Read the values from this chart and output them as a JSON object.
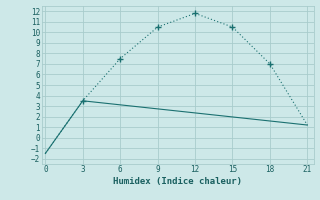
{
  "xlabel": "Humidex (Indice chaleur)",
  "background_color": "#cde8e8",
  "grid_color": "#a8cccc",
  "line_color": "#1a7070",
  "line1_x": [
    0,
    3,
    6,
    9,
    12,
    15,
    18,
    21
  ],
  "line1_y": [
    -1.5,
    3.5,
    7.5,
    10.5,
    11.8,
    10.5,
    7.0,
    1.2
  ],
  "line2_x": [
    0,
    3,
    21
  ],
  "line2_y": [
    -1.5,
    3.5,
    1.2
  ],
  "xlim": [
    -0.3,
    21.5
  ],
  "ylim": [
    -2.5,
    12.5
  ],
  "xticks": [
    0,
    3,
    6,
    9,
    12,
    15,
    18,
    21
  ],
  "yticks": [
    -2,
    -1,
    0,
    1,
    2,
    3,
    4,
    5,
    6,
    7,
    8,
    9,
    10,
    11,
    12
  ]
}
